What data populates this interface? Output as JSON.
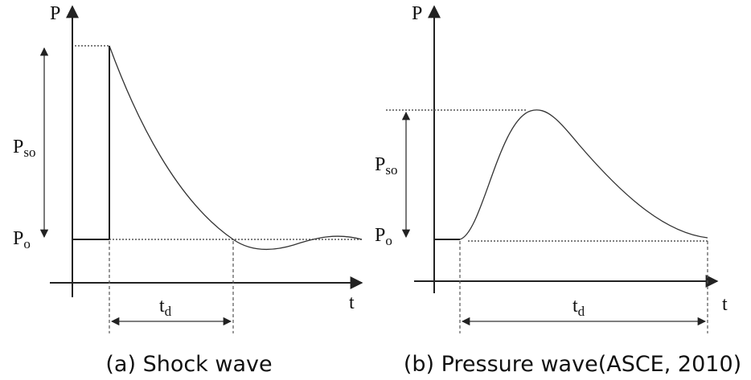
{
  "panels": [
    {
      "axis_y": "P",
      "axis_x": "t",
      "amplitude": {
        "main": "P",
        "sub": "so"
      },
      "ambient": {
        "main": "P",
        "sub": "o"
      },
      "duration": {
        "main": "t",
        "sub": "d"
      },
      "caption": "(a) Shock wave"
    },
    {
      "axis_y": "P",
      "axis_x": "t",
      "amplitude": {
        "main": "P",
        "sub": "so"
      },
      "ambient": {
        "main": "P",
        "sub": "o"
      },
      "duration": {
        "main": "t",
        "sub": "d"
      },
      "caption": "(b) Pressure wave(ASCE, 2010)"
    }
  ]
}
